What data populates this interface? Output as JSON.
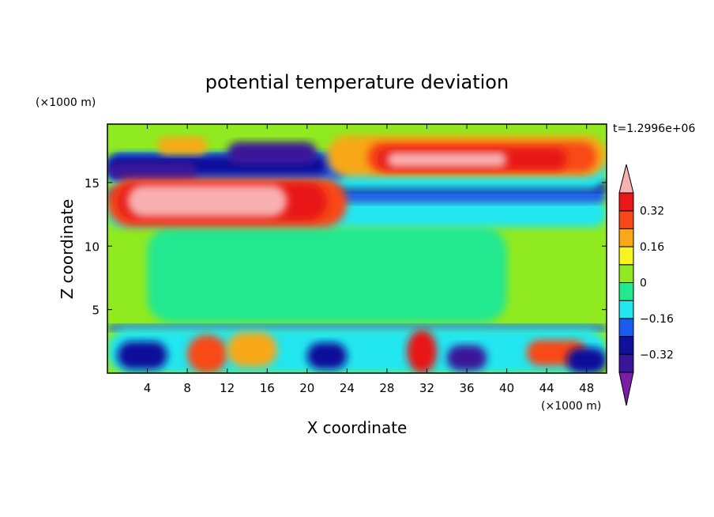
{
  "chart_data": {
    "type": "heatmap",
    "title": "potential temperature deviation",
    "xlabel": "X coordinate",
    "ylabel": "Z coordinate",
    "x_unit": "(×1000 m)",
    "y_unit": "(×1000 m)",
    "time_label": "t=1.2996e+06",
    "xlim": [
      0,
      50
    ],
    "ylim": [
      0,
      19.6
    ],
    "x_ticks": [
      4,
      8,
      12,
      16,
      20,
      24,
      28,
      32,
      36,
      40,
      44,
      48
    ],
    "y_ticks": [
      5,
      10,
      15
    ],
    "colorbar": {
      "levels": [
        -0.4,
        -0.32,
        -0.24,
        -0.16,
        -0.08,
        0,
        0.08,
        0.16,
        0.24,
        0.32,
        0.4
      ],
      "labels": [
        {
          "value": 0.32,
          "text": "0.32"
        },
        {
          "value": 0.16,
          "text": "0.16"
        },
        {
          "value": 0,
          "text": "0"
        },
        {
          "value": -0.16,
          "text": "−0.16"
        },
        {
          "value": -0.32,
          "text": "−0.32"
        }
      ],
      "colors": [
        "#7a1ea8",
        "#3a149a",
        "#10109a",
        "#1a5cf0",
        "#22e6f0",
        "#22e890",
        "#90ea20",
        "#f8f420",
        "#f8a818",
        "#f84818",
        "#e81818",
        "#f8b0b0"
      ]
    },
    "regions": [
      {
        "x": [
          0,
          50
        ],
        "z": [
          0,
          19.6
        ],
        "value": 0.04
      },
      {
        "x": [
          4,
          40
        ],
        "z": [
          4,
          11.5
        ],
        "value": -0.04
      },
      {
        "x": [
          0,
          50
        ],
        "z": [
          11.5,
          13.7
        ],
        "value": -0.12
      },
      {
        "x": [
          0,
          50
        ],
        "z": [
          13.4,
          14.6
        ],
        "value": -0.2
      },
      {
        "x": [
          2,
          50
        ],
        "z": [
          14.3,
          15.2
        ],
        "value": -0.28
      },
      {
        "x": [
          0,
          50
        ],
        "z": [
          14.5,
          17.2
        ],
        "value": -0.12
      },
      {
        "x": [
          0,
          24
        ],
        "z": [
          15.2,
          17.3
        ],
        "value": -0.2
      },
      {
        "x": [
          0,
          22
        ],
        "z": [
          15.6,
          17.1
        ],
        "value": -0.28
      },
      {
        "x": [
          0,
          9
        ],
        "z": [
          15.2,
          16.6
        ],
        "value": -0.36
      },
      {
        "x": [
          12,
          21
        ],
        "z": [
          16.4,
          18.2
        ],
        "value": -0.36
      },
      {
        "x": [
          5,
          10
        ],
        "z": [
          17.2,
          18.6
        ],
        "value": 0.2
      },
      {
        "x": [
          22,
          50
        ],
        "z": [
          15.5,
          18.7
        ],
        "value": 0.2
      },
      {
        "x": [
          26,
          49
        ],
        "z": [
          15.8,
          18.2
        ],
        "value": 0.28
      },
      {
        "x": [
          27,
          46
        ],
        "z": [
          16.0,
          17.7
        ],
        "value": 0.36
      },
      {
        "x": [
          28,
          40
        ],
        "z": [
          16.2,
          17.4
        ],
        "value": 0.45
      },
      {
        "x": [
          0,
          24
        ],
        "z": [
          11.5,
          15.3
        ],
        "value": 0.28
      },
      {
        "x": [
          1,
          22
        ],
        "z": [
          12.0,
          15.0
        ],
        "value": 0.36
      },
      {
        "x": [
          2,
          18
        ],
        "z": [
          12.3,
          14.8
        ],
        "value": 0.45
      },
      {
        "x": [
          0,
          50
        ],
        "z": [
          3.3,
          3.8
        ],
        "value": -0.2
      },
      {
        "x": [
          0,
          50
        ],
        "z": [
          0,
          3.5
        ],
        "value": -0.12
      },
      {
        "x": [
          1,
          6
        ],
        "z": [
          0.3,
          2.5
        ],
        "value": -0.28
      },
      {
        "x": [
          8,
          12
        ],
        "z": [
          0,
          3.0
        ],
        "value": 0.28
      },
      {
        "x": [
          12,
          17
        ],
        "z": [
          0.5,
          3.2
        ],
        "value": 0.2
      },
      {
        "x": [
          20,
          24
        ],
        "z": [
          0.3,
          2.4
        ],
        "value": -0.28
      },
      {
        "x": [
          30,
          33
        ],
        "z": [
          0,
          3.4
        ],
        "value": 0.36
      },
      {
        "x": [
          34,
          38
        ],
        "z": [
          0.2,
          2.2
        ],
        "value": -0.36
      },
      {
        "x": [
          42,
          48
        ],
        "z": [
          0.6,
          2.6
        ],
        "value": 0.28
      },
      {
        "x": [
          46,
          50
        ],
        "z": [
          0,
          2.0
        ],
        "value": -0.28
      }
    ]
  }
}
